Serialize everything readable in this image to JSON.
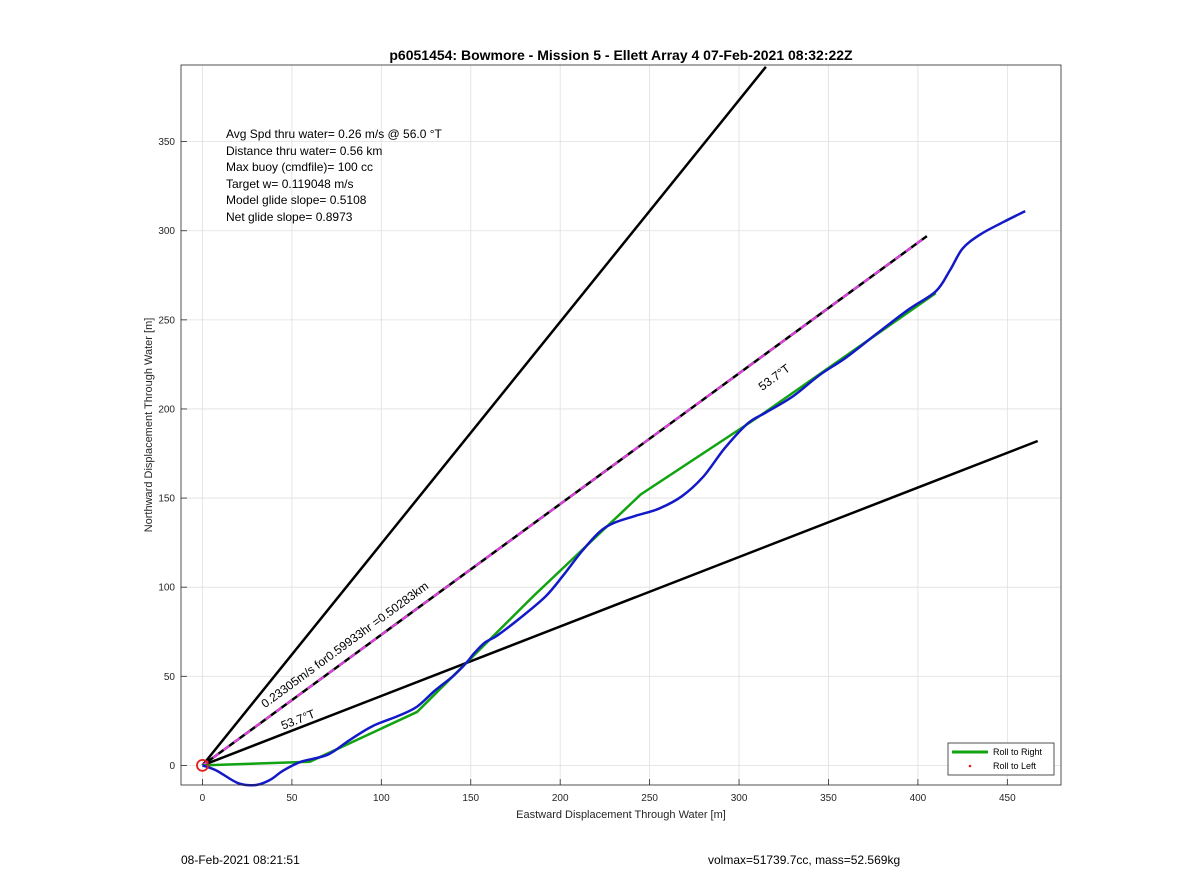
{
  "chart_data": {
    "type": "line",
    "title": "p6051454: Bowmore - Mission 5 - Ellett Array 4 07-Feb-2021 08:32:22Z",
    "xlabel": "Eastward Displacement Through Water [m]",
    "ylabel": "Northward Displacement Through Water [m]",
    "xlim": [
      -12,
      480
    ],
    "ylim": [
      -11,
      393
    ],
    "xticks": [
      0,
      50,
      100,
      150,
      200,
      250,
      300,
      350,
      400,
      450
    ],
    "yticks": [
      0,
      50,
      100,
      150,
      200,
      250,
      300,
      350
    ],
    "grid": true,
    "legend_position": "bottom-right",
    "series": [
      {
        "name": "Roll to Right",
        "color": "#11a311",
        "x": [
          0,
          60,
          120,
          185,
          245,
          310,
          410
        ],
        "y": [
          0,
          2,
          30,
          95,
          152,
          195,
          265
        ]
      },
      {
        "name": "Roll to Left",
        "color": "#e0211d",
        "x": [],
        "y": []
      }
    ],
    "track": {
      "color": "#1419c8",
      "x": [
        0,
        8,
        20,
        30,
        38,
        45,
        55,
        70,
        82,
        95,
        110,
        120,
        130,
        140,
        147,
        152,
        158,
        165,
        178,
        192,
        202,
        212,
        222,
        230,
        242,
        255,
        268,
        280,
        292,
        305,
        315,
        330,
        345,
        360,
        378,
        395,
        410,
        418,
        425,
        435,
        448,
        460
      ],
      "y": [
        0,
        -3,
        -10,
        -11,
        -8,
        -3,
        2,
        6,
        14,
        22,
        28,
        33,
        42,
        50,
        57,
        63,
        69,
        73,
        83,
        95,
        107,
        120,
        131,
        136,
        140,
        144,
        151,
        162,
        178,
        192,
        198,
        207,
        219,
        229,
        243,
        256,
        266,
        278,
        290,
        298,
        305,
        311
      ]
    },
    "reference_lines": [
      {
        "color": "#000000",
        "x": [
          0,
          315
        ],
        "y": [
          0,
          392
        ]
      },
      {
        "color": "#000000",
        "x": [
          0,
          467
        ],
        "y": [
          0,
          182
        ]
      },
      {
        "color": "#000000",
        "x": [
          0,
          405
        ],
        "y": [
          0,
          297
        ]
      },
      {
        "color": "#e040e0",
        "dashed": true,
        "x": [
          0,
          405
        ],
        "y": [
          0,
          297
        ]
      }
    ],
    "origin_marker": {
      "x": 0,
      "y": 0,
      "color": "#e0211d"
    },
    "annotations": [
      {
        "text": "0.23305m/s for0.59933hr =0.50283km",
        "x": 35,
        "y": 32,
        "angle": 36.3
      },
      {
        "text": "53.7°T",
        "x": 45,
        "y": 20,
        "angle": 21.3
      },
      {
        "text": "53.7°T",
        "x": 313,
        "y": 210,
        "angle": 36.3
      }
    ],
    "info_lines": [
      "Avg Spd thru water=  0.26 m/s @  56.0 °T",
      "Distance thru water=  0.56 km",
      "Max buoy (cmdfile)= 100 cc",
      "Target w= 0.119048 m/s",
      "Model glide slope= 0.5108",
      "Net glide slope= 0.8973"
    ]
  },
  "footer": {
    "left": "08-Feb-2021 08:21:51",
    "right": "volmax=51739.7cc, mass=52.569kg"
  }
}
